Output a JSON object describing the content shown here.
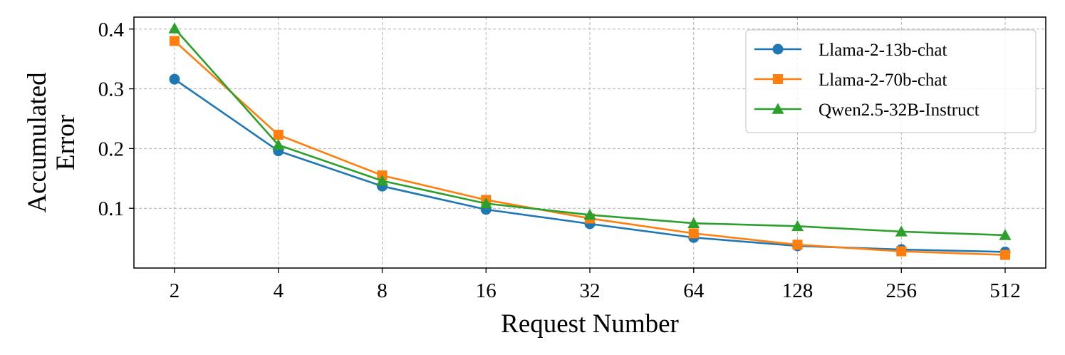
{
  "chart_data": {
    "type": "line",
    "xlabel": "Request Number",
    "ylabel": [
      "Accumulated",
      "Error"
    ],
    "x_scale": "log2",
    "x": [
      2,
      4,
      8,
      16,
      32,
      64,
      128,
      256,
      512
    ],
    "x_tick_labels": [
      "2",
      "4",
      "8",
      "16",
      "32",
      "64",
      "128",
      "256",
      "512"
    ],
    "ylim": [
      0.0,
      0.42
    ],
    "y_ticks": [
      0.1,
      0.2,
      0.3,
      0.4
    ],
    "y_tick_labels": [
      "0.1",
      "0.2",
      "0.3",
      "0.4"
    ],
    "grid": true,
    "legend_position": "top-right",
    "series": [
      {
        "name": "Llama-2-13b-chat",
        "color": "#1f77b4",
        "marker": "circle",
        "values": [
          0.316,
          0.196,
          0.137,
          0.098,
          0.074,
          0.051,
          0.037,
          0.031,
          0.027
        ]
      },
      {
        "name": "Llama-2-70b-chat",
        "color": "#ff7f0e",
        "marker": "square",
        "values": [
          0.38,
          0.223,
          0.155,
          0.114,
          0.083,
          0.058,
          0.039,
          0.028,
          0.022
        ]
      },
      {
        "name": "Qwen2.5-32B-Instruct",
        "color": "#2ca02c",
        "marker": "triangle",
        "values": [
          0.401,
          0.206,
          0.146,
          0.108,
          0.089,
          0.075,
          0.07,
          0.061,
          0.055
        ]
      }
    ]
  }
}
